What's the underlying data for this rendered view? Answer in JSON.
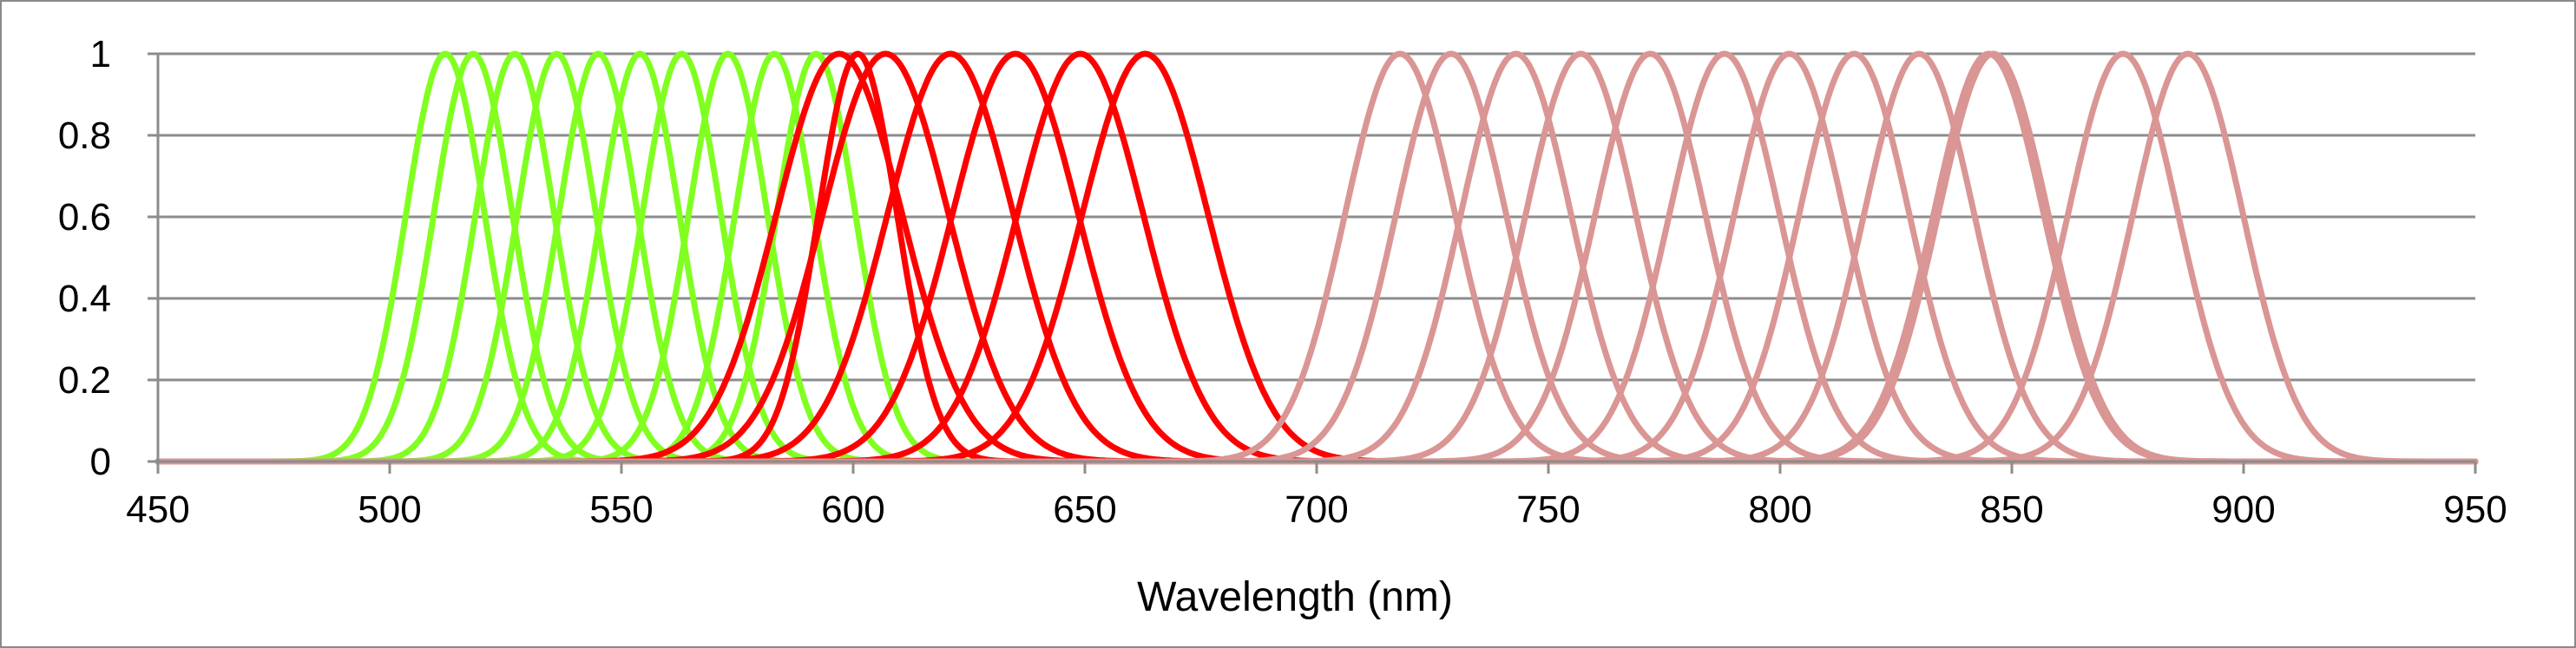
{
  "chart_data": {
    "type": "line",
    "title": "",
    "xlabel": "Wavelength (nm)",
    "ylabel": "",
    "xlim": [
      450,
      950
    ],
    "ylim": [
      0,
      1
    ],
    "x_ticks": [
      450,
      500,
      550,
      600,
      650,
      700,
      750,
      800,
      850,
      900,
      950
    ],
    "y_ticks": [
      0,
      0.2,
      0.4,
      0.6,
      0.8,
      1
    ],
    "y_tick_labels": [
      "0",
      "0.2",
      "0.4",
      "0.6",
      "0.8",
      "1"
    ],
    "x_tick_labels": [
      "450",
      "500",
      "550",
      "600",
      "650",
      "700",
      "750",
      "800",
      "850",
      "900",
      "950"
    ],
    "grid": true,
    "legend": "none",
    "colors": {
      "green": "#80ff20",
      "red": "#ff0000",
      "pink": "#d99694"
    },
    "curve_model": "gaussian",
    "series": [
      {
        "name": "green-512",
        "color": "green",
        "center": 512,
        "fwhm": 20
      },
      {
        "name": "green-518",
        "color": "green",
        "center": 518,
        "fwhm": 20
      },
      {
        "name": "green-527",
        "color": "green",
        "center": 527,
        "fwhm": 20
      },
      {
        "name": "green-536",
        "color": "green",
        "center": 536,
        "fwhm": 20
      },
      {
        "name": "green-545",
        "color": "green",
        "center": 545,
        "fwhm": 20
      },
      {
        "name": "green-554",
        "color": "green",
        "center": 554,
        "fwhm": 20
      },
      {
        "name": "green-563",
        "color": "green",
        "center": 563,
        "fwhm": 20
      },
      {
        "name": "green-573",
        "color": "green",
        "center": 573,
        "fwhm": 20
      },
      {
        "name": "green-583",
        "color": "green",
        "center": 583,
        "fwhm": 20
      },
      {
        "name": "green-592",
        "color": "green",
        "center": 592,
        "fwhm": 20
      },
      {
        "name": "red-597",
        "color": "red",
        "center": 597,
        "fwhm": 32
      },
      {
        "name": "red-601",
        "color": "red",
        "center": 601,
        "fwhm": 20
      },
      {
        "name": "red-607",
        "color": "red",
        "center": 607,
        "fwhm": 32
      },
      {
        "name": "red-621",
        "color": "red",
        "center": 621,
        "fwhm": 32
      },
      {
        "name": "red-635",
        "color": "red",
        "center": 635,
        "fwhm": 32
      },
      {
        "name": "red-649",
        "color": "red",
        "center": 649,
        "fwhm": 32
      },
      {
        "name": "red-663",
        "color": "red",
        "center": 663,
        "fwhm": 32
      },
      {
        "name": "pink-718",
        "color": "pink",
        "center": 718,
        "fwhm": 28
      },
      {
        "name": "pink-729",
        "color": "pink",
        "center": 729,
        "fwhm": 28
      },
      {
        "name": "pink-743",
        "color": "pink",
        "center": 743,
        "fwhm": 28
      },
      {
        "name": "pink-757",
        "color": "pink",
        "center": 757,
        "fwhm": 28
      },
      {
        "name": "pink-772",
        "color": "pink",
        "center": 772,
        "fwhm": 28
      },
      {
        "name": "pink-788",
        "color": "pink",
        "center": 788,
        "fwhm": 28
      },
      {
        "name": "pink-802",
        "color": "pink",
        "center": 802,
        "fwhm": 28
      },
      {
        "name": "pink-816",
        "color": "pink",
        "center": 816,
        "fwhm": 28
      },
      {
        "name": "pink-830",
        "color": "pink",
        "center": 830,
        "fwhm": 28
      },
      {
        "name": "pink-845",
        "color": "pink",
        "center": 845,
        "fwhm": 28
      },
      {
        "name": "pink-846",
        "color": "pink",
        "center": 846,
        "fwhm": 28
      },
      {
        "name": "pink-874",
        "color": "pink",
        "center": 874,
        "fwhm": 28
      },
      {
        "name": "pink-888",
        "color": "pink",
        "center": 888,
        "fwhm": 28
      }
    ]
  }
}
